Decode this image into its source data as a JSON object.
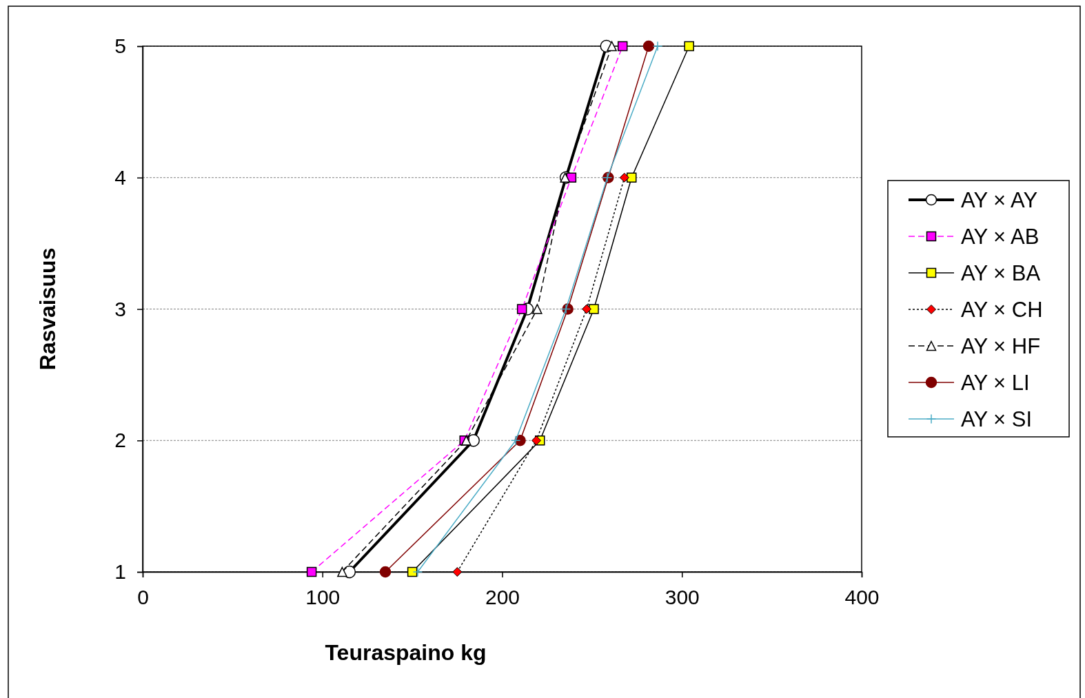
{
  "chart_data": {
    "type": "line",
    "xlabel": "Teuraspaino kg",
    "ylabel": "Rasvaisuus",
    "xlim": [
      0,
      400
    ],
    "xticks": [
      0,
      100,
      200,
      300,
      400
    ],
    "ylim": [
      1,
      5
    ],
    "yticks": [
      1,
      2,
      3,
      4,
      5
    ],
    "grid": "y",
    "legend": "right",
    "series": [
      {
        "name": "AY × AY",
        "color": "#000000",
        "marker": "circle",
        "line_style": "solid",
        "x": [
          115,
          184,
          214,
          235.5,
          258
        ],
        "values": [
          1,
          2,
          3,
          4,
          5
        ]
      },
      {
        "name": "AY × AB",
        "color": "#ff00ff",
        "marker": "square",
        "line_style": "dashed",
        "x": [
          94,
          179,
          211,
          238.5,
          267
        ],
        "values": [
          1,
          2,
          3,
          4,
          5
        ]
      },
      {
        "name": "AY × BA",
        "color": "#ffff00",
        "marker": "square",
        "line_style": "solid",
        "x": [
          150,
          221,
          251,
          272,
          304
        ],
        "values": [
          1,
          2,
          3,
          4,
          5
        ]
      },
      {
        "name": "AY × CH",
        "color": "#ff0000",
        "marker": "diamond",
        "line_style": "dotted",
        "x": [
          175,
          219,
          247,
          268,
          null
        ],
        "values": [
          1,
          2,
          3,
          4,
          null
        ]
      },
      {
        "name": "AY × HF",
        "color": "#ffffff",
        "marker": "triangle",
        "line_style": "dashed",
        "x": [
          111,
          180,
          219.5,
          235,
          261
        ],
        "values": [
          1,
          2,
          3,
          4,
          5
        ]
      },
      {
        "name": "AY × LI",
        "color": "#800000",
        "marker": "circle",
        "line_style": "solid",
        "x": [
          135,
          210,
          236.5,
          259,
          281.5
        ],
        "values": [
          1,
          2,
          3,
          4,
          5
        ]
      },
      {
        "name": "AY × SI",
        "color": "#4bacc6",
        "marker": "cross",
        "line_style": "solid",
        "x": [
          153,
          207.5,
          235.5,
          258.5,
          286.5
        ],
        "values": [
          1,
          2,
          3,
          4,
          5
        ]
      }
    ]
  }
}
